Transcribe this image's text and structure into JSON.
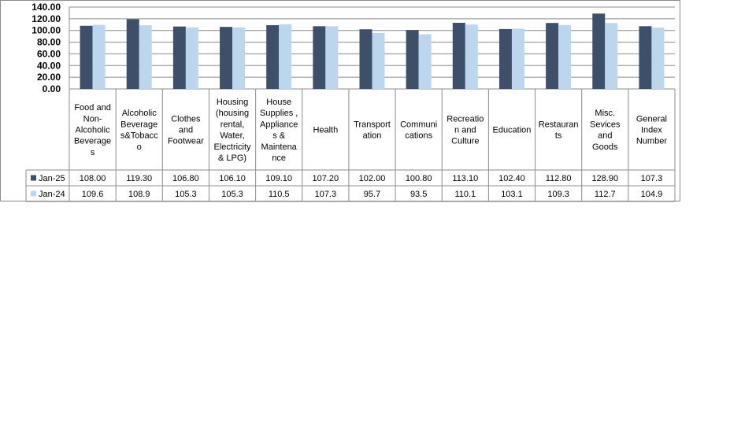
{
  "chart_data": {
    "type": "bar",
    "ylim": [
      0,
      140
    ],
    "yticks": [
      "0.00",
      "20.00",
      "40.00",
      "60.00",
      "80.00",
      "100.00",
      "120.00",
      "140.00"
    ],
    "grid": true,
    "categories": [
      "Food and Non-Alcoholic Beverages",
      "Alcoholic Beverages&Tobacco",
      "Clothes and Footwear",
      "Housing (housing rental, Water, Electricity & LPG)",
      "House Supplies , Appliances & Maintenance",
      "Health",
      "Transportation",
      "Communications",
      "Recreation and Culture",
      "Education",
      "Restaurants",
      "Misc. Sevices and Goods",
      "General Index Number"
    ],
    "category_label_lines": [
      [
        "Food and",
        "Non-",
        "Alcoholic",
        "Beverage",
        "s"
      ],
      [
        "Alcoholic",
        "Beverage",
        "s&Tobacc",
        "o"
      ],
      [
        "Clothes",
        "and",
        "Footwear"
      ],
      [
        "Housing",
        "(housing",
        "rental,",
        "Water,",
        "Electricity",
        "& LPG)"
      ],
      [
        "House",
        "Supplies ,",
        "Appliance",
        "s &",
        "Maintena",
        "nce"
      ],
      [
        "Health"
      ],
      [
        "Transport",
        "ation"
      ],
      [
        "Communi",
        "cations"
      ],
      [
        "Recreatio",
        "n and",
        "Culture"
      ],
      [
        "Education"
      ],
      [
        "Restauran",
        "ts"
      ],
      [
        "Misc.",
        "Sevices",
        "and",
        "Goods"
      ],
      [
        "General",
        "Index",
        "Number"
      ]
    ],
    "series": [
      {
        "name": "Jan-25",
        "color": "#3e4f6a",
        "values": [
          108.0,
          119.3,
          106.8,
          106.1,
          109.1,
          107.2,
          102.0,
          100.8,
          113.1,
          102.4,
          112.8,
          128.9,
          107.3
        ],
        "labels": [
          "108.00",
          "119.30",
          "106.80",
          "106.10",
          "109.10",
          "107.20",
          "102.00",
          "100.80",
          "113.10",
          "102.40",
          "112.80",
          "128.90",
          "107.3"
        ]
      },
      {
        "name": "Jan-24",
        "color": "#bcd6ee",
        "values": [
          109.6,
          108.9,
          105.3,
          105.3,
          110.5,
          107.3,
          95.7,
          93.5,
          110.1,
          103.1,
          109.3,
          112.7,
          104.9
        ],
        "labels": [
          "109.6",
          "108.9",
          "105.3",
          "105.3",
          "110.5",
          "107.3",
          "95.7",
          "93.5",
          "110.1",
          "103.1",
          "109.3",
          "112.7",
          "104.9"
        ]
      }
    ]
  }
}
